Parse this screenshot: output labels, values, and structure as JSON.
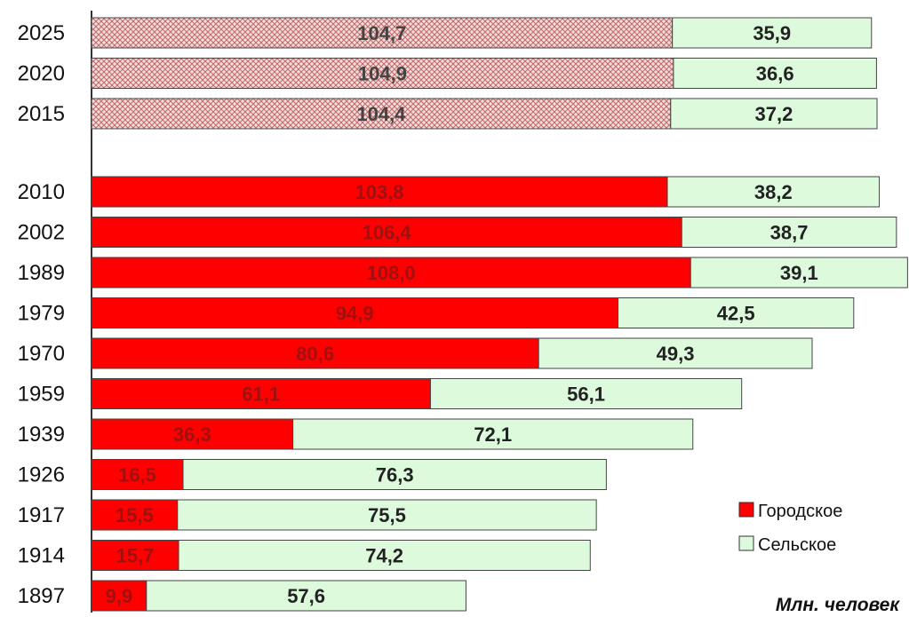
{
  "chart_data": {
    "type": "bar",
    "orientation": "horizontal",
    "stacked": true,
    "categories": [
      "2025",
      "2020",
      "2015",
      "2010",
      "2002",
      "1989",
      "1979",
      "1970",
      "1959",
      "1939",
      "1926",
      "1917",
      "1914",
      "1897"
    ],
    "projected_categories": [
      "2025",
      "2020",
      "2015"
    ],
    "series": [
      {
        "name": "Городское",
        "color": "#ff0000",
        "projected_color": "#e8b4b4",
        "values": [
          104.7,
          104.9,
          104.4,
          103.8,
          106.4,
          108.0,
          94.9,
          80.6,
          61.1,
          36.3,
          16.5,
          15.5,
          15.7,
          9.9
        ],
        "labels": [
          "104,7",
          "104,9",
          "104,4",
          "103,8",
          "106,4",
          "108,0",
          "94,9",
          "80,6",
          "61,1",
          "36,3",
          "16,5",
          "15,5",
          "15,7",
          "9,9"
        ]
      },
      {
        "name": "Сельское",
        "color": "#ddfadd",
        "values": [
          35.9,
          36.6,
          37.2,
          38.2,
          38.7,
          39.1,
          42.5,
          49.3,
          56.1,
          72.1,
          76.3,
          75.5,
          74.2,
          57.6
        ],
        "labels": [
          "35,9",
          "36,6",
          "37,2",
          "38,2",
          "38,7",
          "39,1",
          "42,5",
          "49,3",
          "56,1",
          "72,1",
          "76,3",
          "75,5",
          "74,2",
          "57,6"
        ]
      }
    ],
    "xlim": [
      0,
      147.2
    ],
    "unit_label": "Млн. человек",
    "legend_position": "bottom-right",
    "grid": false
  },
  "legend": {
    "urban": "Городское",
    "rural": "Сельское"
  },
  "unit_label": "Млн. человек"
}
